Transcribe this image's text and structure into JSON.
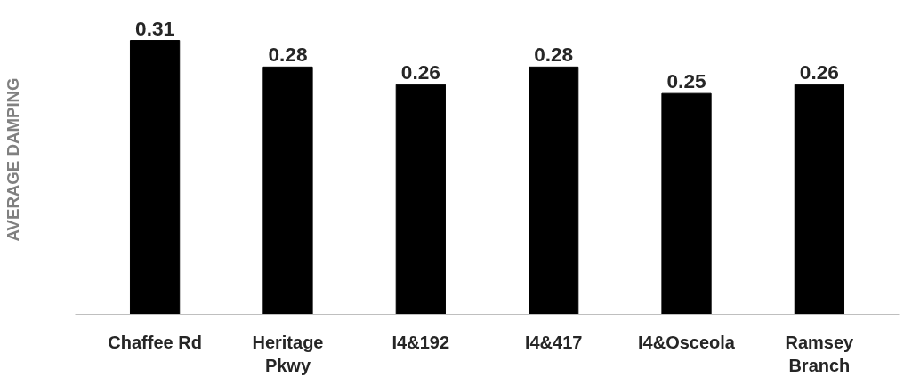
{
  "chart_data": {
    "type": "bar",
    "ylabel": "AVERAGE DAMPING",
    "categories": [
      "Chaffee Rd",
      "Heritage\nPkwy",
      "I4&192",
      "I4&417",
      "I4&Osceola",
      "Ramsey\nBranch"
    ],
    "values": [
      0.31,
      0.28,
      0.26,
      0.28,
      0.25,
      0.26
    ],
    "color": "#000000",
    "data_labels": true,
    "grid": false
  }
}
